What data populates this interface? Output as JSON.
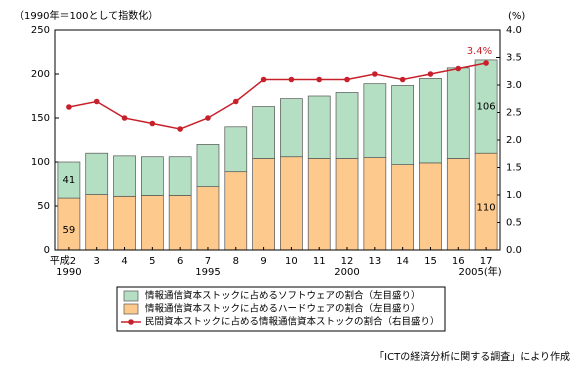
{
  "chart_data": {
    "type": "bar-line",
    "y_label": "（1990年＝100として指数化）",
    "y2_label": "(%)",
    "categories": [
      "平成2",
      "3",
      "4",
      "5",
      "6",
      "7",
      "8",
      "9",
      "10",
      "11",
      "12",
      "13",
      "14",
      "15",
      "16",
      "17"
    ],
    "categories_sub": [
      "1990",
      null,
      null,
      null,
      null,
      "1995",
      null,
      null,
      null,
      null,
      "2000",
      null,
      null,
      null,
      null,
      "2005(年)"
    ],
    "series": [
      {
        "name": "情報通信資本ストックに占めるハードウェアの割合（左目盛り）",
        "color": "#fdc98c",
        "stack": true,
        "values": [
          59,
          63,
          61,
          62,
          62,
          72,
          89,
          104,
          106,
          104,
          104,
          105,
          97,
          99,
          104,
          110
        ],
        "value_labels": [
          "59",
          null,
          null,
          null,
          null,
          null,
          null,
          null,
          null,
          null,
          null,
          null,
          null,
          null,
          null,
          "110"
        ]
      },
      {
        "name": "情報通信資本ストックに占めるソフトウェアの割合（左目盛り）",
        "color": "#b5dfc3",
        "stack": true,
        "values": [
          41,
          47,
          46,
          44,
          44,
          48,
          51,
          59,
          66,
          71,
          75,
          84,
          90,
          96,
          103,
          106
        ],
        "value_labels": [
          "41",
          null,
          null,
          null,
          null,
          null,
          null,
          null,
          null,
          null,
          null,
          null,
          null,
          null,
          null,
          "106"
        ]
      },
      {
        "name": "民間資本ストックに占める情報通信資本ストックの割合（右目盛り）",
        "color": "#c8202a",
        "axis": "y2",
        "line": true,
        "values": [
          2.6,
          2.7,
          2.4,
          2.3,
          2.2,
          2.4,
          2.7,
          3.1,
          3.1,
          3.1,
          3.1,
          3.2,
          3.1,
          3.2,
          3.3,
          3.4
        ],
        "value_labels": [
          null,
          null,
          null,
          null,
          null,
          null,
          null,
          null,
          null,
          null,
          null,
          null,
          null,
          null,
          null,
          "3.4%"
        ]
      }
    ],
    "legend_order": [
      1,
      0,
      2
    ],
    "ylim": [
      0,
      250
    ],
    "yticks": [
      0,
      50,
      100,
      150,
      200,
      250
    ],
    "y2lim": [
      0,
      4
    ],
    "y2ticks": [
      {
        "value": 0,
        "label": "0.0"
      },
      0.5,
      {
        "value": 1,
        "label": "1.0"
      },
      1.5,
      {
        "value": 2,
        "label": "2.0"
      },
      2.5,
      {
        "value": 3,
        "label": "3.0"
      },
      3.5,
      {
        "value": 4,
        "label": "4.0"
      }
    ],
    "source": "「ICTの経済分析に関する調査」により作成"
  }
}
